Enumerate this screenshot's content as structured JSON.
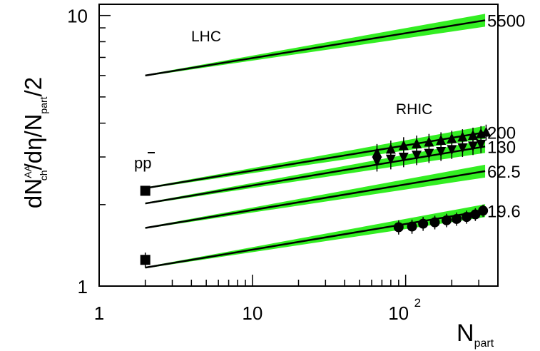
{
  "chart_data": {
    "type": "line",
    "x_scale": "log",
    "y_scale": "log",
    "xlim": [
      1,
      400
    ],
    "ylim": [
      1,
      11
    ],
    "xlabel": "N",
    "xlabel_sub": "part",
    "ylabel_parts": [
      "dN",
      "AA",
      "ch",
      "/dη/N",
      "part",
      "/2"
    ],
    "x_ticks": [
      {
        "v": 1,
        "label": "1"
      },
      {
        "v": 10,
        "label": "10"
      },
      {
        "v": 100,
        "label": "10",
        "sup": "2"
      }
    ],
    "y_ticks": [
      {
        "v": 1,
        "label": "1"
      },
      {
        "v": 10,
        "label": "10"
      }
    ],
    "annotations": {
      "lhc": "LHC",
      "rhic": "RHIC",
      "ppbar": "pp",
      "ppbar_bar": "̄"
    },
    "colors": {
      "band": "#33ee22",
      "line": "#000000",
      "marker": "#000000"
    },
    "series": [
      {
        "name": "5500",
        "x": [
          2,
          330
        ],
        "y": [
          6.0,
          9.6
        ]
      },
      {
        "name": "200",
        "x": [
          2,
          330
        ],
        "y": [
          2.3,
          3.7
        ]
      },
      {
        "name": "130",
        "x": [
          2,
          330
        ],
        "y": [
          2.02,
          3.28
        ]
      },
      {
        "name": "62.5",
        "x": [
          2,
          330
        ],
        "y": [
          1.64,
          2.66
        ]
      },
      {
        "name": "19.6",
        "x": [
          2,
          330
        ],
        "y": [
          1.17,
          1.9
        ]
      }
    ],
    "points": [
      {
        "label": "pp̄ 200",
        "shape": "square",
        "x": [
          2
        ],
        "y": [
          2.25
        ],
        "err": [
          0.05
        ]
      },
      {
        "label": "pp̄ 19.6",
        "shape": "square",
        "x": [
          2
        ],
        "y": [
          1.25
        ],
        "err": [
          0.08
        ]
      },
      {
        "label": "200",
        "shape": "triangle-up",
        "x": [
          65,
          80,
          97,
          118,
          142,
          170,
          200,
          235,
          275,
          310,
          335
        ],
        "y": [
          3.1,
          3.2,
          3.3,
          3.35,
          3.4,
          3.45,
          3.5,
          3.55,
          3.6,
          3.65,
          3.7
        ],
        "err": [
          0.25,
          0.25,
          0.25,
          0.25,
          0.25,
          0.25,
          0.25,
          0.25,
          0.25,
          0.25,
          0.25
        ]
      },
      {
        "label": "130",
        "shape": "triangle-down",
        "x": [
          65,
          80,
          97,
          118,
          142,
          170,
          200,
          235,
          275,
          310
        ],
        "y": [
          2.9,
          2.95,
          3.0,
          3.05,
          3.1,
          3.15,
          3.2,
          3.25,
          3.3,
          3.35
        ],
        "err": [
          0.25,
          0.25,
          0.25,
          0.25,
          0.25,
          0.25,
          0.25,
          0.25,
          0.25,
          0.25
        ]
      },
      {
        "label": "19.6",
        "shape": "circle",
        "x": [
          90,
          110,
          130,
          155,
          185,
          215,
          250,
          285,
          320
        ],
        "y": [
          1.65,
          1.66,
          1.7,
          1.72,
          1.75,
          1.77,
          1.8,
          1.84,
          1.9
        ],
        "err": [
          0.1,
          0.1,
          0.1,
          0.1,
          0.1,
          0.1,
          0.1,
          0.1,
          0.1
        ]
      }
    ]
  }
}
